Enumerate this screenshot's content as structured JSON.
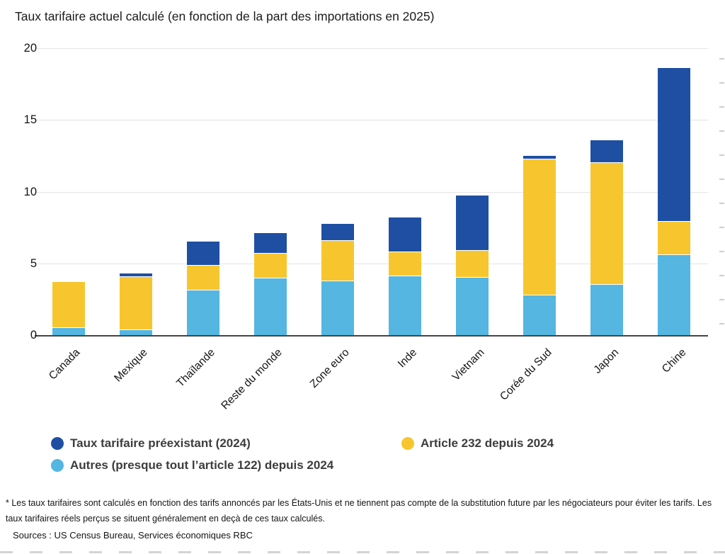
{
  "title": "Taux tarifaire actuel calculé (en fonction de la part des importations en 2025)",
  "chart_data": {
    "type": "bar",
    "stacked": true,
    "bar_orientation": "vertical",
    "title": "Taux tarifaire actuel calculé (en fonction de la part des importations en 2025)",
    "categories": [
      "Canada",
      "Mexique",
      "Thaïlande",
      "Reste du monde",
      "Zone euro",
      "Inde",
      "Vietnam",
      "Corée du Sud",
      "Japon",
      "Chine"
    ],
    "series": [
      {
        "name": "Taux tarifaire préexistant (2024)",
        "color": "#1E4FA3",
        "values": [
          0,
          0.25,
          1.65,
          1.4,
          1.2,
          2.4,
          3.85,
          0.25,
          1.6,
          10.7
        ]
      },
      {
        "name": "Article 232 depuis 2024",
        "color": "#F7C62F",
        "values": [
          3.2,
          3.7,
          1.75,
          1.75,
          2.8,
          1.7,
          1.9,
          9.5,
          8.5,
          2.3
        ]
      },
      {
        "name": "Autres (presque tout l’article 122) depuis 2024",
        "color": "#54B6E1",
        "values": [
          0.5,
          0.35,
          3.1,
          3.95,
          3.75,
          4.1,
          4.0,
          2.75,
          3.5,
          5.6
        ]
      }
    ],
    "totals": [
      3.7,
      4.3,
      6.5,
      7.1,
      7.75,
      8.2,
      9.75,
      12.5,
      13.6,
      18.6
    ],
    "xlabel": "",
    "ylabel": "",
    "ylim": [
      0,
      20
    ],
    "yticks": [
      0,
      5,
      10,
      15,
      20
    ],
    "grid": true,
    "legend_position": "bottom",
    "stack_order_bottom_to_top": [
      "Autres (presque tout l’article 122) depuis 2024",
      "Article 232 depuis 2024",
      "Taux tarifaire préexistant (2024)"
    ]
  },
  "notes": {
    "footnote": "* Les taux tarifaires sont calculés en fonction des tarifs annoncés par les États-Unis et ne tiennent pas compte de la substitution future par les négociateurs pour éviter les tarifs. Les taux tarifaires réels perçus se situent généralement en deçà de ces taux calculés.",
    "sources": "Sources : US Census Bureau, Services économiques RBC"
  }
}
